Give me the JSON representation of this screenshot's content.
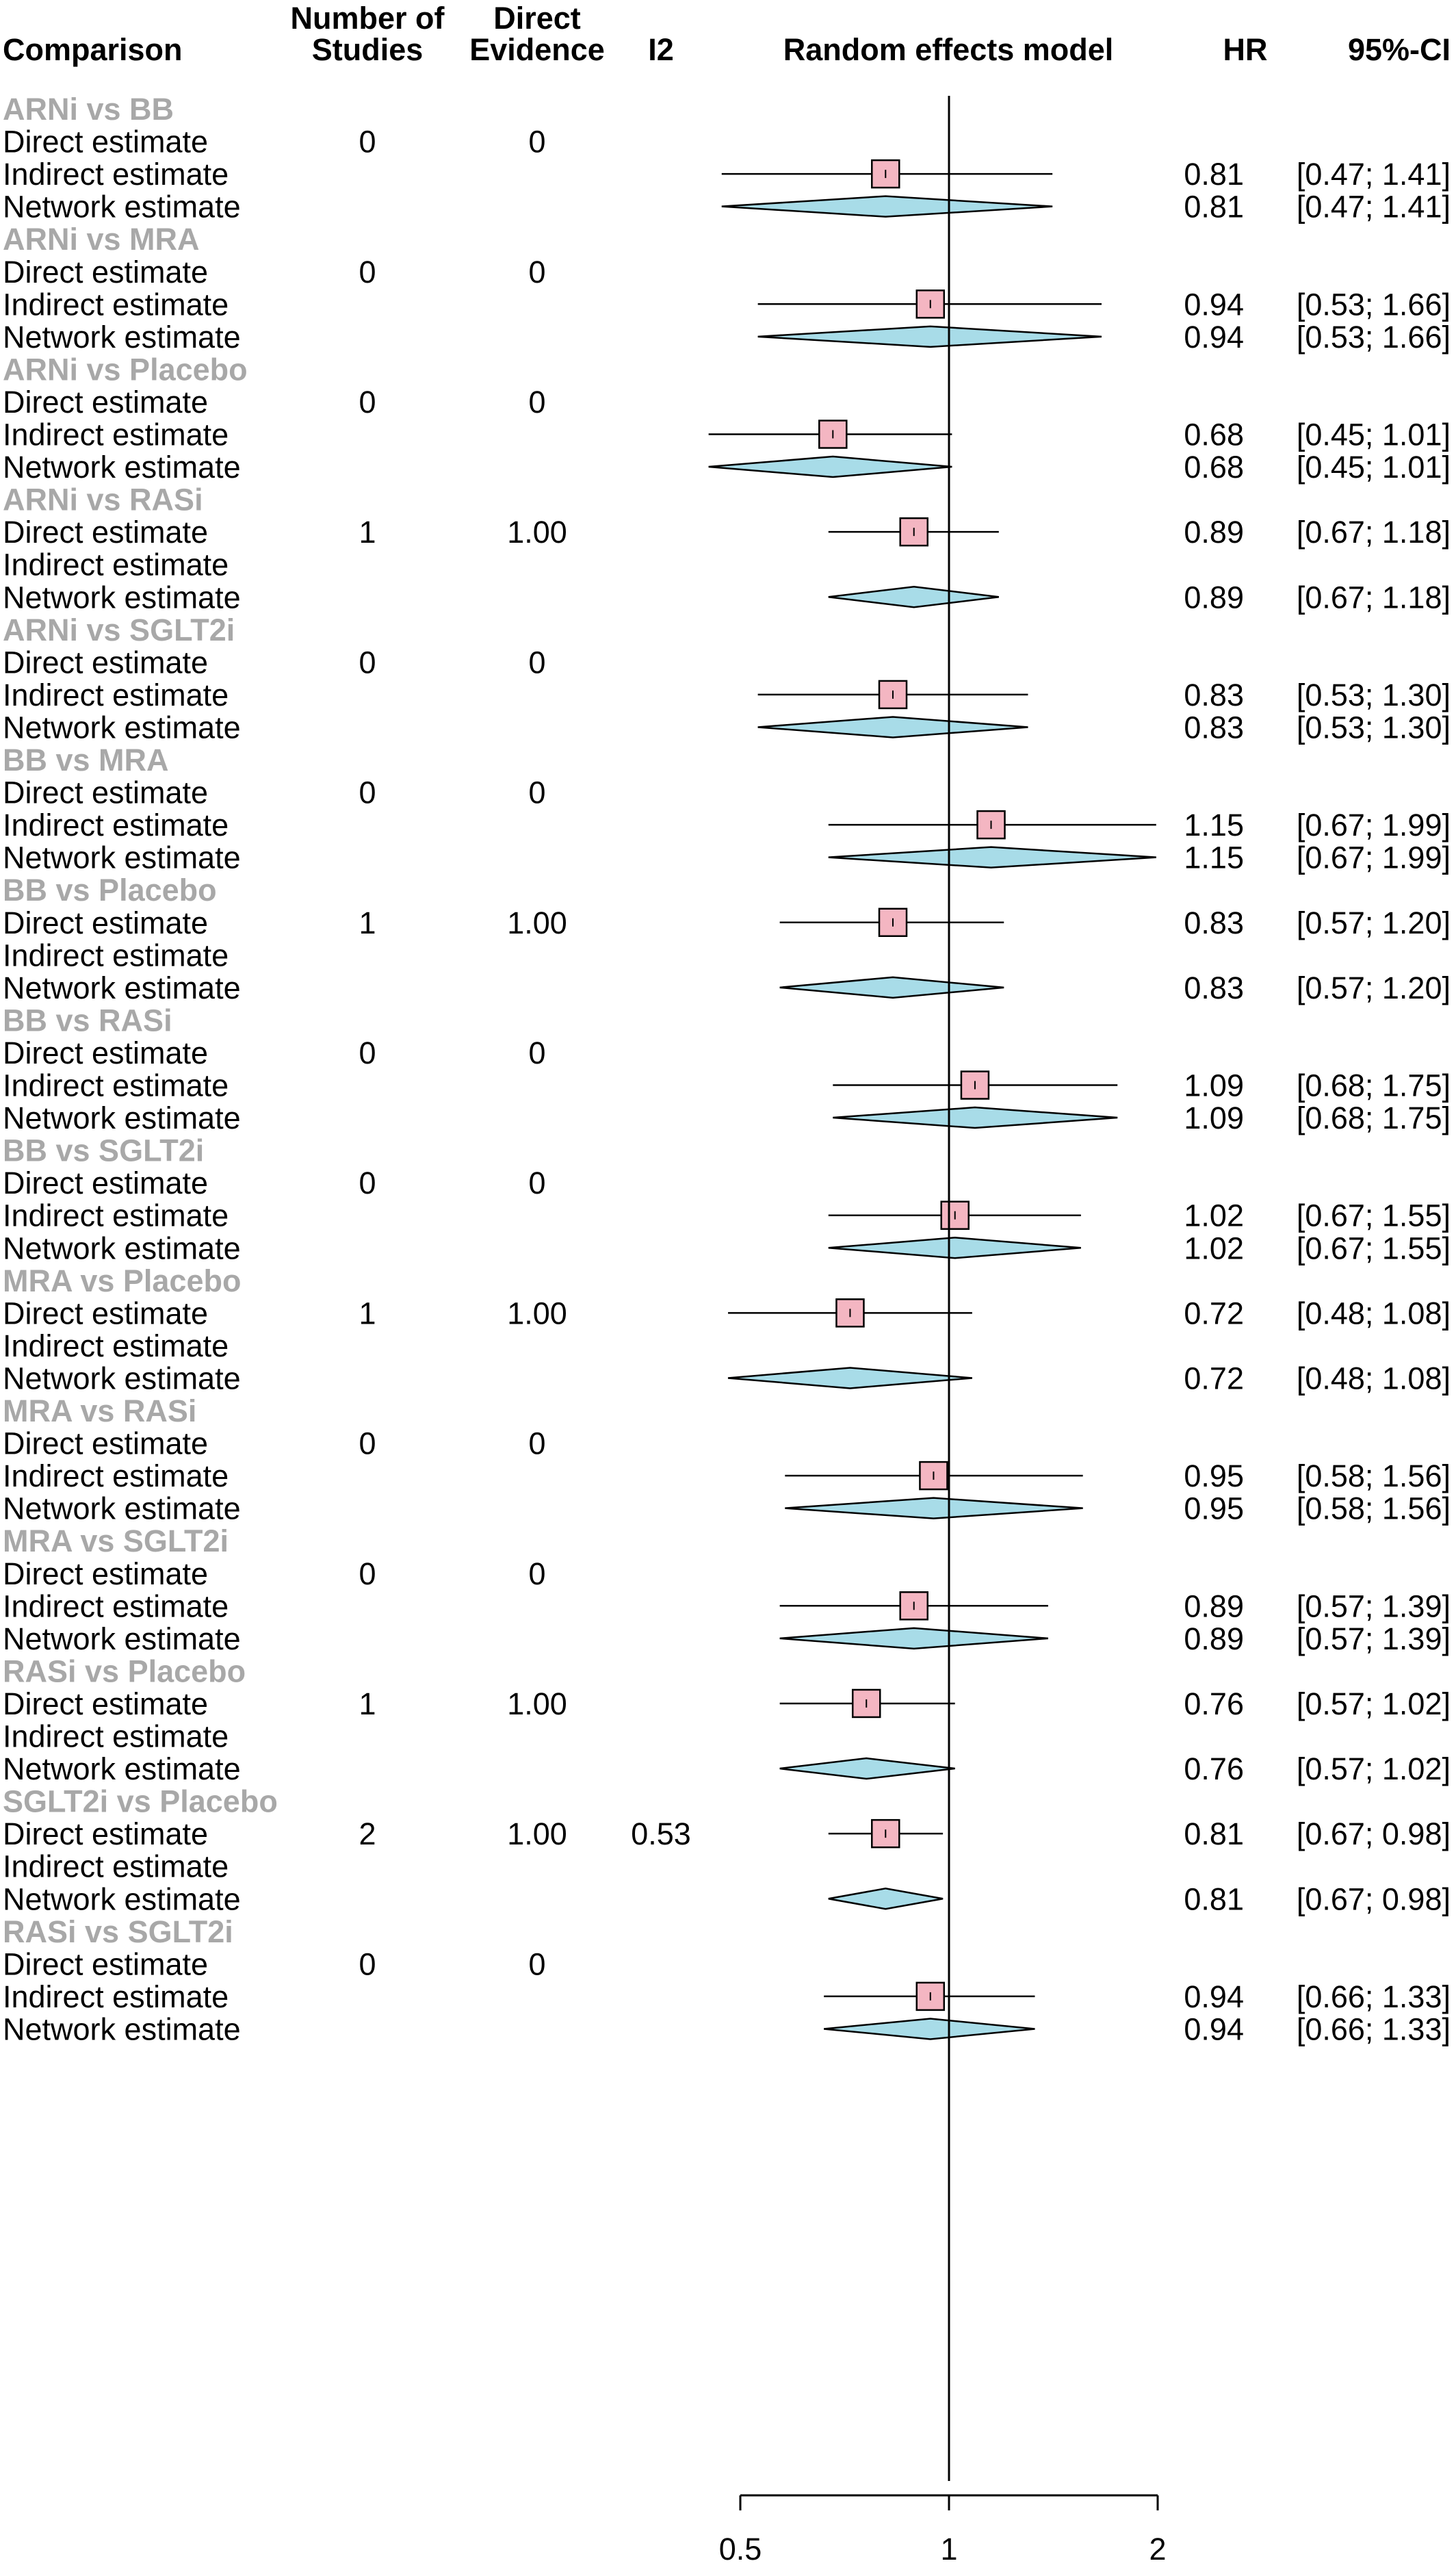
{
  "chart_data": {
    "type": "forest",
    "x_scale": "log",
    "xlim": [
      0.5,
      2
    ],
    "xticks": [
      "0.5",
      "1",
      "2"
    ],
    "reference_line": 1,
    "colors": {
      "square": "#f4b6c2",
      "diamond": "#a8dce8",
      "outline": "#000000",
      "group_label": "#a8a8a8"
    },
    "headers": {
      "comparison": "Comparison",
      "n_studies_1": "Number of",
      "n_studies_2": "Studies",
      "direct_1": "Direct",
      "direct_2": "Evidence",
      "i2": "I2",
      "model": "Random effects model",
      "hr": "HR",
      "ci": "95%-CI"
    },
    "row_labels": {
      "direct": "Direct estimate",
      "indirect": "Indirect estimate",
      "network": "Network estimate"
    },
    "groups": [
      {
        "label": "ARNi vs BB",
        "n": "0",
        "direct_evidence": "0",
        "i2": "",
        "estimate_row": "indirect",
        "hr": 0.81,
        "lo": 0.47,
        "hi": 1.41,
        "hr_text": "0.81",
        "ci_text": "[0.47; 1.41]"
      },
      {
        "label": "ARNi vs MRA",
        "n": "0",
        "direct_evidence": "0",
        "i2": "",
        "estimate_row": "indirect",
        "hr": 0.94,
        "lo": 0.53,
        "hi": 1.66,
        "hr_text": "0.94",
        "ci_text": "[0.53; 1.66]"
      },
      {
        "label": "ARNi vs Placebo",
        "n": "0",
        "direct_evidence": "0",
        "i2": "",
        "estimate_row": "indirect",
        "hr": 0.68,
        "lo": 0.45,
        "hi": 1.01,
        "hr_text": "0.68",
        "ci_text": "[0.45; 1.01]"
      },
      {
        "label": "ARNi vs RASi",
        "n": "1",
        "direct_evidence": "1.00",
        "i2": "",
        "estimate_row": "direct",
        "hr": 0.89,
        "lo": 0.67,
        "hi": 1.18,
        "hr_text": "0.89",
        "ci_text": "[0.67; 1.18]"
      },
      {
        "label": "ARNi vs SGLT2i",
        "n": "0",
        "direct_evidence": "0",
        "i2": "",
        "estimate_row": "indirect",
        "hr": 0.83,
        "lo": 0.53,
        "hi": 1.3,
        "hr_text": "0.83",
        "ci_text": "[0.53; 1.30]"
      },
      {
        "label": "BB vs MRA",
        "n": "0",
        "direct_evidence": "0",
        "i2": "",
        "estimate_row": "indirect",
        "hr": 1.15,
        "lo": 0.67,
        "hi": 1.99,
        "hr_text": "1.15",
        "ci_text": "[0.67; 1.99]"
      },
      {
        "label": "BB vs Placebo",
        "n": "1",
        "direct_evidence": "1.00",
        "i2": "",
        "estimate_row": "direct",
        "hr": 0.83,
        "lo": 0.57,
        "hi": 1.2,
        "hr_text": "0.83",
        "ci_text": "[0.57; 1.20]"
      },
      {
        "label": "BB vs RASi",
        "n": "0",
        "direct_evidence": "0",
        "i2": "",
        "estimate_row": "indirect",
        "hr": 1.09,
        "lo": 0.68,
        "hi": 1.75,
        "hr_text": "1.09",
        "ci_text": "[0.68; 1.75]"
      },
      {
        "label": "BB vs SGLT2i",
        "n": "0",
        "direct_evidence": "0",
        "i2": "",
        "estimate_row": "indirect",
        "hr": 1.02,
        "lo": 0.67,
        "hi": 1.55,
        "hr_text": "1.02",
        "ci_text": "[0.67; 1.55]"
      },
      {
        "label": "MRA vs Placebo",
        "n": "1",
        "direct_evidence": "1.00",
        "i2": "",
        "estimate_row": "direct",
        "hr": 0.72,
        "lo": 0.48,
        "hi": 1.08,
        "hr_text": "0.72",
        "ci_text": "[0.48; 1.08]"
      },
      {
        "label": "MRA vs RASi",
        "n": "0",
        "direct_evidence": "0",
        "i2": "",
        "estimate_row": "indirect",
        "hr": 0.95,
        "lo": 0.58,
        "hi": 1.56,
        "hr_text": "0.95",
        "ci_text": "[0.58; 1.56]"
      },
      {
        "label": "MRA vs SGLT2i",
        "n": "0",
        "direct_evidence": "0",
        "i2": "",
        "estimate_row": "indirect",
        "hr": 0.89,
        "lo": 0.57,
        "hi": 1.39,
        "hr_text": "0.89",
        "ci_text": "[0.57; 1.39]"
      },
      {
        "label": "RASi vs Placebo",
        "n": "1",
        "direct_evidence": "1.00",
        "i2": "",
        "estimate_row": "direct",
        "hr": 0.76,
        "lo": 0.57,
        "hi": 1.02,
        "hr_text": "0.76",
        "ci_text": "[0.57; 1.02]"
      },
      {
        "label": "SGLT2i vs Placebo",
        "n": "2",
        "direct_evidence": "1.00",
        "i2": "0.53",
        "estimate_row": "direct",
        "hr": 0.81,
        "lo": 0.67,
        "hi": 0.98,
        "hr_text": "0.81",
        "ci_text": "[0.67; 0.98]"
      },
      {
        "label": "RASi vs SGLT2i",
        "n": "0",
        "direct_evidence": "0",
        "i2": "",
        "estimate_row": "indirect",
        "hr": 0.94,
        "lo": 0.66,
        "hi": 1.33,
        "hr_text": "0.94",
        "ci_text": "[0.66; 1.33]"
      }
    ]
  }
}
